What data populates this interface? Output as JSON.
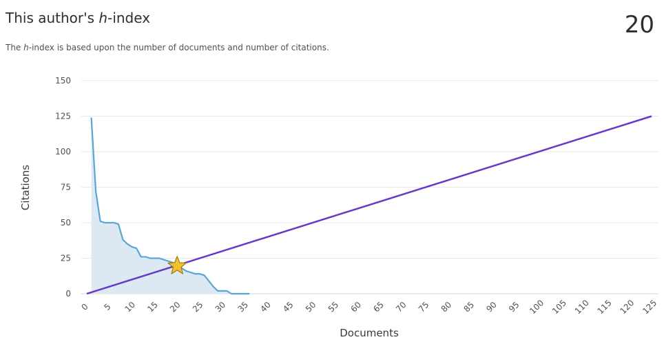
{
  "header": {
    "title_prefix": "This author's ",
    "title_italic": "h",
    "title_suffix": "-index",
    "h_index_value": "20",
    "subtitle_prefix": "The ",
    "subtitle_italic": "h",
    "subtitle_suffix": "-index is based upon the number of documents and number of citations."
  },
  "colors": {
    "citations_line": "#5aa6d3",
    "citations_fill": "#dce9f3",
    "h_index_line": "#6a38c9",
    "star_fill": "#f2c12e",
    "star_stroke": "#9c7a10",
    "grid": "#e8e8e8"
  },
  "chart_data": {
    "type": "area",
    "xlabel": "Documents",
    "ylabel": "Citations",
    "xlim": [
      0,
      125
    ],
    "ylim": [
      0,
      150
    ],
    "x_ticks": [
      0,
      5,
      10,
      15,
      20,
      25,
      30,
      35,
      40,
      45,
      50,
      55,
      60,
      65,
      70,
      75,
      80,
      85,
      90,
      95,
      100,
      105,
      110,
      115,
      120,
      125
    ],
    "y_ticks": [
      0,
      25,
      50,
      75,
      100,
      125,
      150
    ],
    "series": [
      {
        "x": [
          1,
          2,
          3,
          4,
          5,
          6,
          7,
          8,
          9,
          10,
          11,
          12,
          13,
          14,
          15,
          16,
          17,
          18,
          19,
          20,
          21,
          22,
          23,
          24,
          25,
          26,
          27,
          28,
          29,
          30,
          31,
          32,
          33,
          34,
          35,
          36
        ],
        "y": [
          124,
          72,
          51,
          50,
          50,
          50,
          49,
          38,
          35,
          33,
          32,
          26,
          26,
          25,
          25,
          25,
          24,
          23,
          22,
          20,
          18,
          16,
          15,
          14,
          14,
          13,
          9,
          5,
          2,
          2,
          2,
          0,
          0,
          0,
          0,
          0
        ]
      },
      {
        "x": [
          0,
          125
        ],
        "y": [
          0,
          125
        ]
      }
    ],
    "h_index_point": {
      "x": 20,
      "y": 20
    }
  }
}
